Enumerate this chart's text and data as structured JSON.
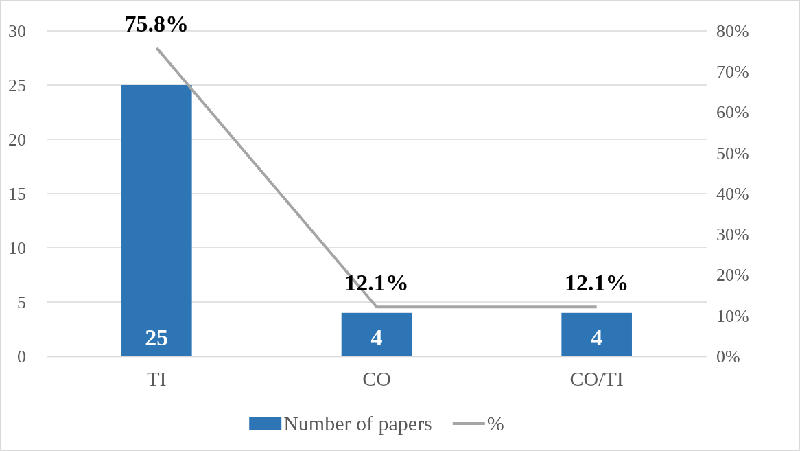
{
  "chart_data": {
    "type": "bar",
    "categories": [
      "TI",
      "CO",
      "CO/TI"
    ],
    "series": [
      {
        "name": "Number of papers",
        "color": "#2e75b6",
        "values": [
          25,
          4,
          4
        ],
        "value_labels": [
          "25",
          "4",
          "4"
        ]
      },
      {
        "name": "%",
        "type": "line",
        "axis": "y2",
        "color": "#a5a5a5",
        "values": [
          75.8,
          12.1,
          12.1
        ],
        "value_labels": [
          "75.8%",
          "12.1%",
          "12.1%"
        ]
      }
    ],
    "ylim": [
      0,
      30
    ],
    "yticks": [
      0,
      5,
      10,
      15,
      20,
      25,
      30
    ],
    "y2lim": [
      0,
      80
    ],
    "y2ticks": [
      {
        "value": 0,
        "label": "0%"
      },
      {
        "value": 10,
        "label": "10%"
      },
      {
        "value": 20,
        "label": "20%"
      },
      {
        "value": 30,
        "label": "30%"
      },
      {
        "value": 40,
        "label": "40%"
      },
      {
        "value": 50,
        "label": "50%"
      },
      {
        "value": 60,
        "label": "60%"
      },
      {
        "value": 70,
        "label": "70%"
      },
      {
        "value": 80,
        "label": "80%"
      }
    ],
    "grid": "y",
    "legend": "bottom",
    "marker": "none",
    "line_style": "solid"
  }
}
